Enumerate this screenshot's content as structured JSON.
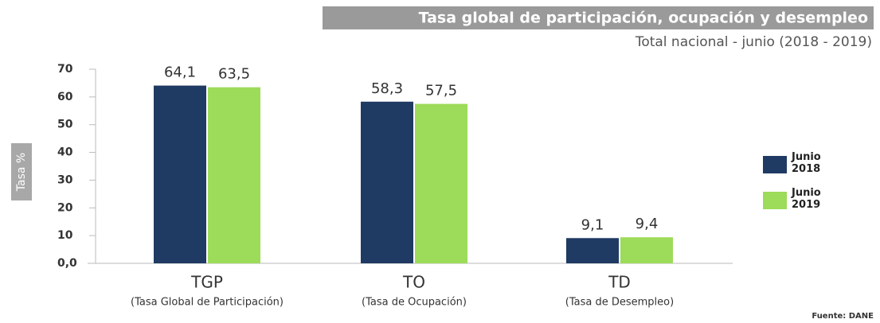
{
  "chart_data": {
    "type": "bar",
    "title": "Tasa global de participación, ocupación y desempleo",
    "subtitle": "Total nacional - junio (2018 - 2019)",
    "y_label": "Tasa %",
    "source": "Fuente: DANE",
    "categories": [
      "TGP",
      "TO",
      "TD"
    ],
    "category_descriptions": [
      "(Tasa Global de Participación)",
      "(Tasa de Ocupación)",
      "(Tasa de Desempleo)"
    ],
    "series": [
      {
        "name": "Junio 2018",
        "color": "#1f3a63",
        "values": [
          64.1,
          58.3,
          9.1
        ],
        "value_labels": [
          "64,1",
          "58,3",
          "9,1"
        ]
      },
      {
        "name": "Junio 2019",
        "color": "#9ddb5a",
        "values": [
          63.5,
          57.5,
          9.4
        ],
        "value_labels": [
          "63,5",
          "57,5",
          "9,4"
        ]
      }
    ],
    "ylim": [
      0,
      70
    ],
    "yticks": [
      {
        "value": 0,
        "label": "0,0"
      },
      10,
      20,
      30,
      40,
      50,
      60,
      70
    ],
    "legend": "right"
  }
}
